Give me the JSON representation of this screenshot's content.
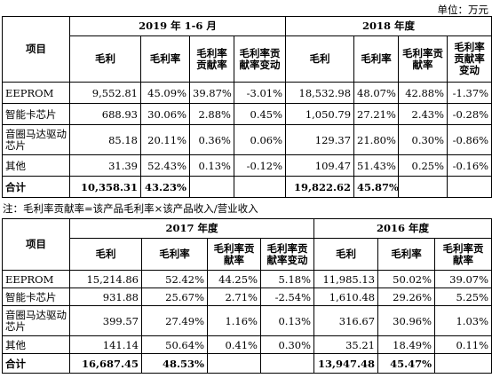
{
  "unit": "单位：万元",
  "note": "注：毛利率贡献率=该产品毛利率×该产品收入/营业收入",
  "table1": {
    "item_header": "项目",
    "period_a": "2019 年 1-6 月",
    "period_b": "2018 年度",
    "col_gross": "毛利",
    "col_margin": "毛利率",
    "col_contrib": "毛利率贡献率",
    "col_change": "毛利率贡献率变动",
    "rows": [
      {
        "name": "EEPROM",
        "a": [
          "9,552.81",
          "45.09%",
          "39.87%",
          "-3.01%"
        ],
        "b": [
          "18,532.98",
          "48.07%",
          "42.88%",
          "-1.37%"
        ]
      },
      {
        "name": "智能卡芯片",
        "a": [
          "688.93",
          "30.06%",
          "2.88%",
          "0.45%"
        ],
        "b": [
          "1,050.79",
          "27.21%",
          "2.43%",
          "-0.28%"
        ]
      },
      {
        "name": "音圈马达驱动芯片",
        "a": [
          "85.18",
          "20.11%",
          "0.36%",
          "0.06%"
        ],
        "b": [
          "129.37",
          "21.80%",
          "0.30%",
          "-0.86%"
        ]
      },
      {
        "name": "其他",
        "a": [
          "31.39",
          "52.43%",
          "0.13%",
          "-0.12%"
        ],
        "b": [
          "109.47",
          "51.43%",
          "0.25%",
          "-0.16%"
        ]
      },
      {
        "name": "合计",
        "a": [
          "10,358.31",
          "43.23%",
          "",
          ""
        ],
        "b": [
          "19,822.62",
          "45.87%",
          "",
          ""
        ]
      }
    ]
  },
  "table2": {
    "item_header": "项目",
    "period_a": "2017 年度",
    "period_b": "2016 年度",
    "col_gross": "毛利",
    "col_margin": "毛利率",
    "col_contrib": "毛利率贡献率",
    "col_change": "毛利率贡献率变动",
    "rows": [
      {
        "name": "EEPROM",
        "a": [
          "15,214.86",
          "52.42%",
          "44.25%",
          "5.18%"
        ],
        "b": [
          "11,985.13",
          "50.02%",
          "39.07%"
        ]
      },
      {
        "name": "智能卡芯片",
        "a": [
          "931.88",
          "25.67%",
          "2.71%",
          "-2.54%"
        ],
        "b": [
          "1,610.48",
          "29.26%",
          "5.25%"
        ]
      },
      {
        "name": "音圈马达驱动芯片",
        "a": [
          "399.57",
          "27.49%",
          "1.16%",
          "0.13%"
        ],
        "b": [
          "316.67",
          "30.96%",
          "1.03%"
        ]
      },
      {
        "name": "其他",
        "a": [
          "141.14",
          "50.64%",
          "0.41%",
          "0.30%"
        ],
        "b": [
          "35.21",
          "18.49%",
          "0.11%"
        ]
      },
      {
        "name": "合计",
        "a": [
          "16,687.45",
          "48.53%",
          "",
          ""
        ],
        "b": [
          "13,947.48",
          "45.47%",
          ""
        ]
      }
    ]
  }
}
